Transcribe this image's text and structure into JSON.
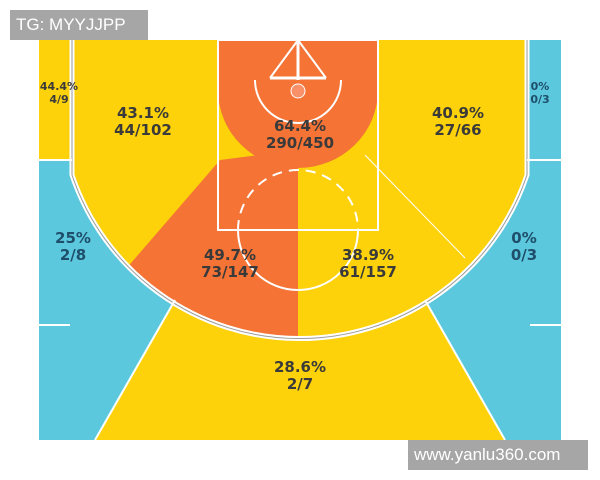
{
  "watermarks": {
    "top_left": "TG: MYYJJPP",
    "bottom_right": "www.yanlu360.com"
  },
  "colors": {
    "hot": "#f47335",
    "average": "#fdd20a",
    "cold": "#5bc8de",
    "lines": "#ffffff"
  },
  "chart_data": {
    "type": "heatmap",
    "title": "",
    "zones": [
      {
        "id": "left-corner-three",
        "pct": "44.4%",
        "made_attempts": "4/9",
        "made": 4,
        "attempts": 9,
        "color": "average"
      },
      {
        "id": "right-corner-three",
        "pct": "0%",
        "made_attempts": "0/3",
        "made": 0,
        "attempts": 3,
        "color": "cold"
      },
      {
        "id": "left-wing-three",
        "pct": "25%",
        "made_attempts": "2/8",
        "made": 2,
        "attempts": 8,
        "color": "cold"
      },
      {
        "id": "right-wing-three",
        "pct": "0%",
        "made_attempts": "0/3",
        "made": 0,
        "attempts": 3,
        "color": "cold"
      },
      {
        "id": "top-of-key-three",
        "pct": "28.6%",
        "made_attempts": "2/7",
        "made": 2,
        "attempts": 7,
        "color": "average"
      },
      {
        "id": "left-baseline-mid",
        "pct": "43.1%",
        "made_attempts": "44/102",
        "made": 44,
        "attempts": 102,
        "color": "average"
      },
      {
        "id": "right-baseline-mid",
        "pct": "40.9%",
        "made_attempts": "27/66",
        "made": 27,
        "attempts": 66,
        "color": "average"
      },
      {
        "id": "restricted-area",
        "pct": "64.4%",
        "made_attempts": "290/450",
        "made": 290,
        "attempts": 450,
        "color": "hot"
      },
      {
        "id": "left-elbow-mid",
        "pct": "49.7%",
        "made_attempts": "73/147",
        "made": 73,
        "attempts": 147,
        "color": "hot"
      },
      {
        "id": "right-elbow-mid",
        "pct": "38.9%",
        "made_attempts": "61/157",
        "made": 61,
        "attempts": 157,
        "color": "average"
      }
    ]
  }
}
